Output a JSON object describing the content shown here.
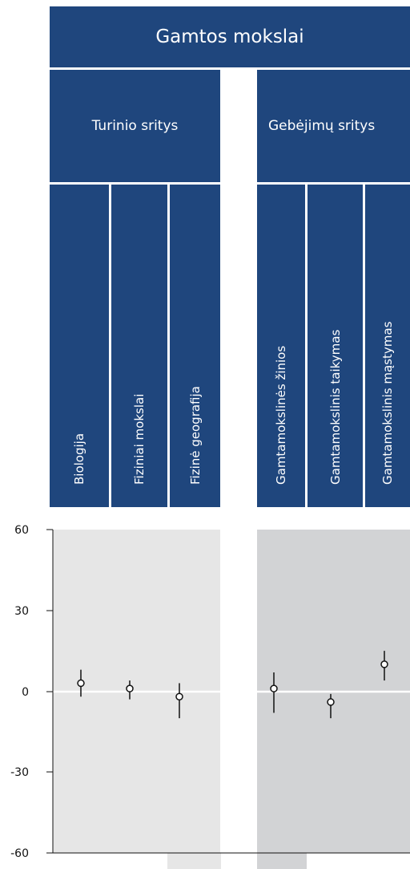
{
  "header": {
    "title": "Gamtos mokslai",
    "groups": [
      {
        "label": "Turinio sritys"
      },
      {
        "label": "Gebėjimų sritys"
      }
    ],
    "columns": [
      "Biologija",
      "Fiziniai mokslai",
      "Fizinė geografija",
      "Gamtamokslinės žinios",
      "Gamtamokslinis taikymas",
      "Gamtamokslinis mąstymas"
    ]
  },
  "colors": {
    "header_blue": "#1f467d",
    "panel_light": "#e6e6e6",
    "panel_dark": "#d2d3d5",
    "zero_line": "#ffffff",
    "marker": "#111111"
  },
  "chart_data": {
    "type": "scatter",
    "ylim": [
      -60,
      60
    ],
    "yticks": [
      "60",
      "30",
      "0",
      "-30",
      "-60"
    ],
    "categories": [
      "Biologija",
      "Fiziniai mokslai",
      "Fizinė geografija",
      "Gamtamokslinės žinios",
      "Gamtamokslinis taikymas",
      "Gamtamokslinis mąstymas"
    ],
    "values": [
      3,
      1,
      -2,
      1,
      -4,
      10
    ],
    "error_low": [
      -2,
      -3,
      -10,
      -8,
      -10,
      4
    ],
    "error_high": [
      8,
      4,
      3,
      7,
      -1,
      15
    ],
    "grid": false
  }
}
